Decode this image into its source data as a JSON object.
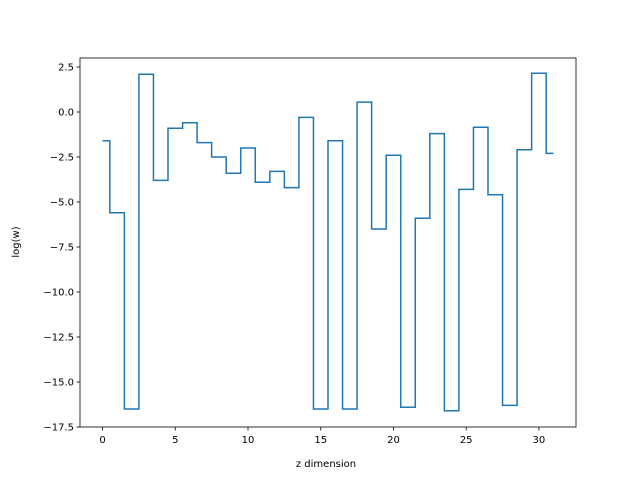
{
  "chart_data": {
    "type": "line",
    "drawstyle": "steps-mid",
    "title": "",
    "xlabel": "z dimension",
    "ylabel": "log(w)",
    "xlim": [
      -1.55,
      32.55
    ],
    "ylim": [
      -17.5,
      3.0
    ],
    "grid": false,
    "legend": "none",
    "line_color": "#1f77b4",
    "x_ticks": [
      0,
      5,
      10,
      15,
      20,
      25,
      30
    ],
    "x_tick_labels": [
      "0",
      "5",
      "10",
      "15",
      "20",
      "25",
      "30"
    ],
    "y_ticks": [
      2.5,
      0.0,
      -2.5,
      -5.0,
      -7.5,
      -10.0,
      -12.5,
      -15.0,
      -17.5
    ],
    "y_tick_labels": [
      "2.5",
      "0.0",
      "−2.5",
      "−5.0",
      "−7.5",
      "−10.0",
      "−12.5",
      "−15.0",
      "−17.5"
    ],
    "x": [
      0,
      1,
      2,
      3,
      4,
      5,
      6,
      7,
      8,
      9,
      10,
      11,
      12,
      13,
      14,
      15,
      16,
      17,
      18,
      19,
      20,
      21,
      22,
      23,
      24,
      25,
      26,
      27,
      28,
      29,
      30,
      31
    ],
    "y": [
      -1.6,
      -5.6,
      -16.5,
      2.1,
      -3.8,
      -0.9,
      -0.6,
      -1.7,
      -2.5,
      -3.4,
      -2.0,
      -3.9,
      -3.3,
      -4.2,
      -0.3,
      -16.5,
      -1.6,
      -16.5,
      0.55,
      -6.5,
      -2.4,
      -16.4,
      -5.9,
      -1.2,
      -16.6,
      -4.3,
      -0.85,
      -4.6,
      -16.3,
      -2.1,
      2.15,
      -2.3
    ]
  }
}
